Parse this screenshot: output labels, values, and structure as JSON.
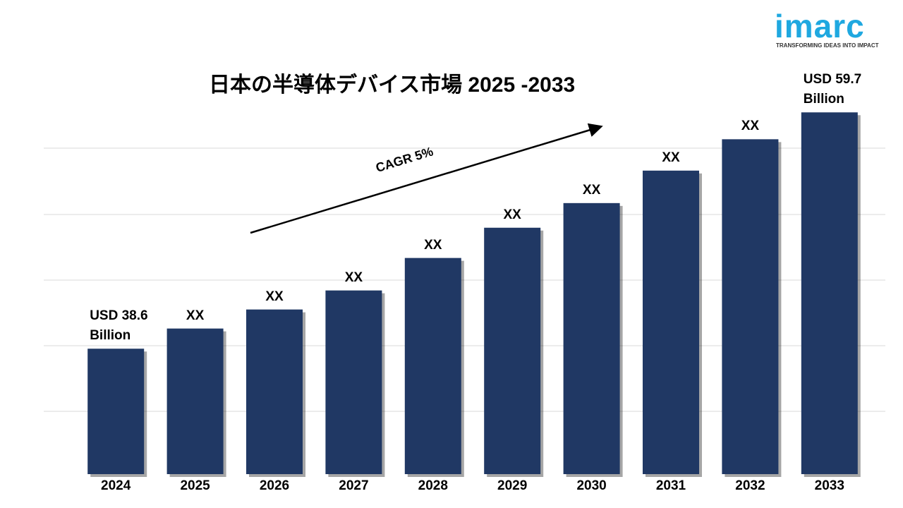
{
  "brand": {
    "name": "imarc",
    "tagline": "TRANSFORMING IDEAS INTO IMPACT"
  },
  "chart_data": {
    "type": "bar",
    "title": "日本の半導体デバイス市場 2025 -2033",
    "annotation": "CAGR 5%",
    "categories": [
      "2024",
      "2025",
      "2026",
      "2027",
      "2028",
      "2029",
      "2030",
      "2031",
      "2032",
      "2033"
    ],
    "values": [
      38.6,
      40.4,
      42.1,
      43.8,
      46.7,
      49.4,
      51.6,
      54.5,
      57.3,
      59.7
    ],
    "value_labels": [
      "USD 38.6 Billion",
      "XX",
      "XX",
      "XX",
      "XX",
      "XX",
      "XX",
      "XX",
      "XX",
      "USD 59.7 Billion"
    ],
    "color": "#203864",
    "ylim": [
      27.4,
      64
    ],
    "grid": true
  }
}
